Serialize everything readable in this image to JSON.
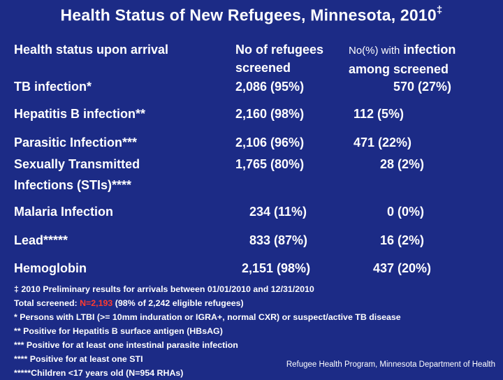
{
  "title": "Health Status of New Refugees, Minnesota, 2010",
  "title_mark": "‡",
  "headers": {
    "status": "Health status upon arrival",
    "screened_line1": "No of refugees",
    "screened_line2": "screened",
    "infection_small": "No(%) with",
    "infection_rest": " infection",
    "infection_line2": "among screened"
  },
  "rows": [
    {
      "label": "TB infection*",
      "label2": "",
      "screened": "2,086 (95%)",
      "infected": "570 (27%)"
    },
    {
      "label": "Hepatitis B infection**",
      "label2": "",
      "screened": "2,160 (98%)",
      "infected": "112 (5%)"
    },
    {
      "label": "Parasitic Infection***",
      "label2": "",
      "screened": "2,106 (96%)",
      "infected": "471 (22%)"
    },
    {
      "label": "Sexually Transmitted",
      "label2": "Infections (STIs)****",
      "screened": "1,765 (80%)",
      "infected": "28 (2%)"
    },
    {
      "label": "Malaria Infection",
      "label2": "",
      "screened": "234 (11%)",
      "infected": "0 (0%)"
    },
    {
      "label": "Lead*****",
      "label2": "",
      "screened": "833 (87%)",
      "infected": "16 (2%)"
    },
    {
      "label": "Hemoglobin",
      "label2": "",
      "screened": "2,151 (98%)",
      "infected": "437 (20%)"
    }
  ],
  "notes": {
    "preliminary": "‡ 2010 Preliminary results for arrivals between 01/01/2010 and 12/31/2010",
    "total_prefix": "Total screened: ",
    "total_value": "N=2,193",
    "total_suffix": " (98% of 2,242 eligible refugees)",
    "tb": "* Persons with LTBI (>= 10mm induration or IGRA+, normal CXR) or suspect/active TB disease",
    "hep": "** Positive for Hepatitis B surface antigen (HBsAG)",
    "parasite": "*** Positive for at least one intestinal parasite infection",
    "sti": "**** Positive for at least one STI",
    "lead": "*****Children <17 years old (N=954 RHAs)"
  },
  "footer": "Refugee Health Program, Minnesota Department of Health",
  "colors": {
    "background": "#1c2b86",
    "text": "#ffffff",
    "accent": "#ff3b30"
  }
}
